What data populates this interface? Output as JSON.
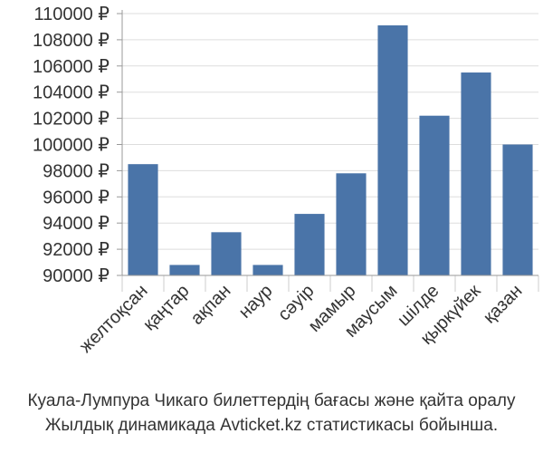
{
  "chart_data": {
    "type": "bar",
    "categories": [
      "желтоқсан",
      "қаңтар",
      "ақпан",
      "наур",
      "сәуір",
      "мамыр",
      "маусым",
      "шілде",
      "қыркүйек",
      "қазан"
    ],
    "values": [
      98500,
      90800,
      93300,
      90800,
      94700,
      97800,
      109100,
      102200,
      105500,
      100000
    ],
    "yticks": [
      "90000 ₽",
      "92000 ₽",
      "94000 ₽",
      "96000 ₽",
      "98000 ₽",
      "100000 ₽",
      "102000 ₽",
      "104000 ₽",
      "106000 ₽",
      "108000 ₽",
      "110000 ₽"
    ],
    "ylim": [
      90000,
      110000
    ],
    "bar_color": "#4a74a8",
    "grid": true,
    "title": "",
    "xlabel": "",
    "ylabel": ""
  },
  "caption": {
    "line1": "Куала-Лумпура Чикаго билеттердің бағасы және қайта оралу",
    "line2": "Жылдық динамикада Avticket.kz статистикасы бойынша."
  }
}
